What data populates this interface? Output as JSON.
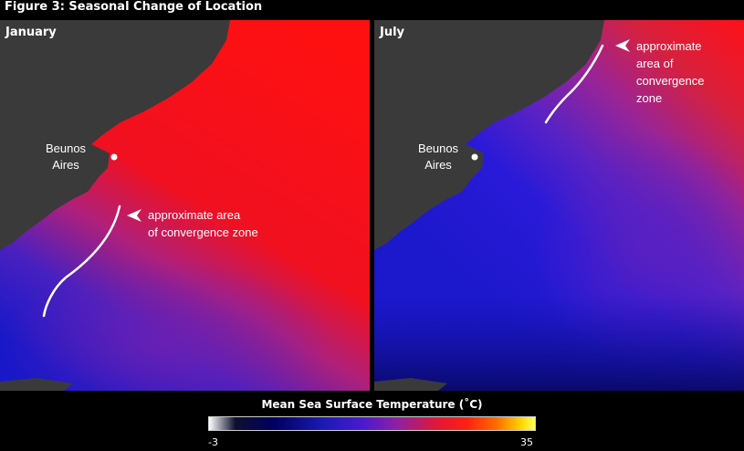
{
  "figure": {
    "title": "Figure 3: Seasonal Change of Location"
  },
  "panels": {
    "january": {
      "label": "January",
      "city": [
        "Beunos",
        "Aires"
      ],
      "annotation": [
        "approximate area",
        "of convergence zone"
      ]
    },
    "july": {
      "label": "July",
      "city": [
        "Beunos",
        "Aires"
      ],
      "annotation": [
        "approximate",
        "area of",
        "convergence",
        "zone"
      ]
    }
  },
  "legend": {
    "title": "Mean Sea Surface Temperature (˚C)",
    "min": "-3",
    "max": "35"
  },
  "colors": {
    "land": "#3a3a3a",
    "warm": "#ff1a1a",
    "mid": "#a0208c",
    "cold": "#2020d8",
    "annotation": "#ffffff"
  }
}
